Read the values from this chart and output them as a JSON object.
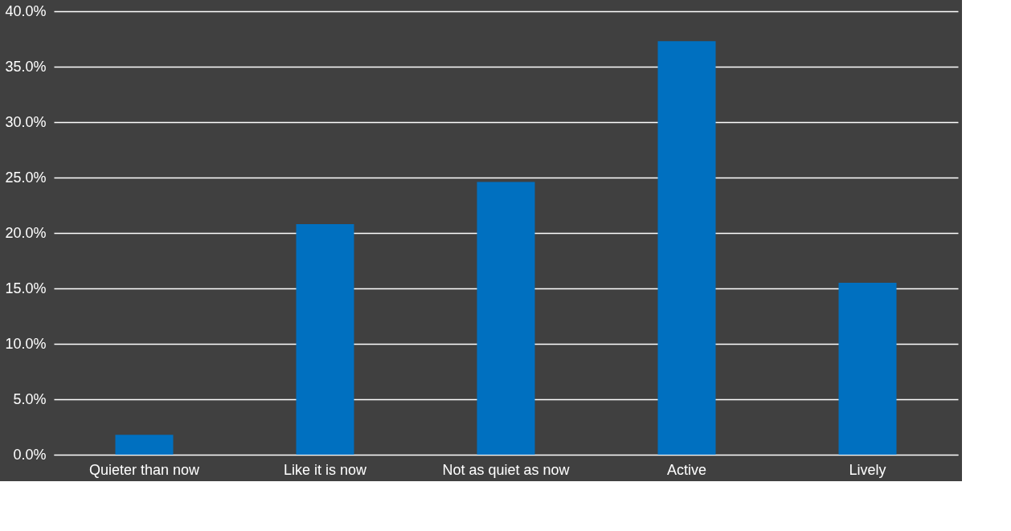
{
  "chart_data": {
    "type": "bar",
    "categories": [
      "Quieter than now",
      "Like it is now",
      "Not as quiet as now",
      "Active",
      "Lively"
    ],
    "values": [
      1.8,
      20.8,
      24.6,
      37.3,
      15.5
    ],
    "color": "#0070c0",
    "ylim": [
      0,
      40
    ],
    "yticks": [
      {
        "value": 0,
        "label": "0.0%"
      },
      {
        "value": 5,
        "label": "5.0%"
      },
      {
        "value": 10,
        "label": "10.0%"
      },
      {
        "value": 15,
        "label": "15.0%"
      },
      {
        "value": 20,
        "label": "20.0%"
      },
      {
        "value": 25,
        "label": "25.0%"
      },
      {
        "value": 30,
        "label": "30.0%"
      },
      {
        "value": 35,
        "label": "35.0%"
      },
      {
        "value": 40,
        "label": "40.0%"
      }
    ],
    "grid": "y"
  }
}
